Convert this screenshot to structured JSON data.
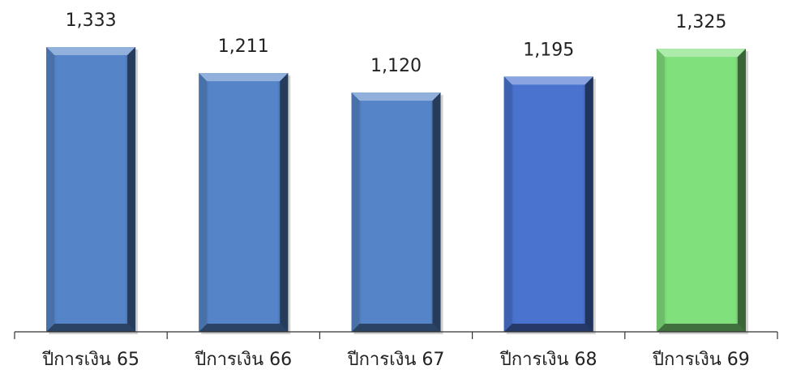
{
  "chart_data": {
    "type": "bar",
    "categories": [
      "ปีการเงิน 65",
      "ปีการเงิน 66",
      "ปีการเงิน 67",
      "ปีการเงิน 68",
      "ปีการเงิน 69"
    ],
    "values": [
      1333,
      1211,
      1120,
      1195,
      1325
    ],
    "value_labels": [
      "1,333",
      "1,211",
      "1,120",
      "1,195",
      "1,325"
    ],
    "bar_colors": [
      "#5585c8",
      "#5585c8",
      "#5585c8",
      "#4a73cf",
      "#80e07c"
    ],
    "ylim": [
      0,
      1333
    ],
    "grid": false,
    "legend": "none"
  }
}
